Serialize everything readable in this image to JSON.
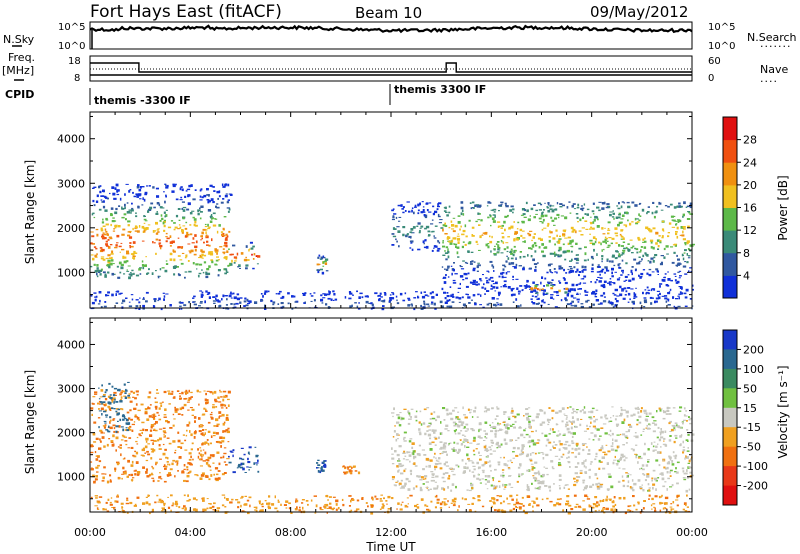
{
  "header": {
    "station": "Fort Hays East (fitACF)",
    "beam": "Beam 10",
    "date": "09/May/2012"
  },
  "summary": {
    "nsky_label": "N.Sky",
    "nsearch_label": "N.Search",
    "freq_label_line1": "Freq.",
    "freq_label_line2": "[MHz]",
    "nave_label": "Nave",
    "cpid_label": "CPID",
    "nsky_ticks": [
      "10^5",
      "10^0"
    ],
    "nsearch_ticks": [
      "10^5",
      "10^0"
    ],
    "freq_ticks": [
      "18",
      "8"
    ],
    "nave_ticks": [
      "60",
      "0"
    ],
    "cpid_segments": [
      "themis -3300 IF",
      "themis 3300 IF"
    ]
  },
  "axes": {
    "xlabel": "Time UT",
    "ylabel": "Slant Range [km]",
    "xticks": [
      "00:00",
      "04:00",
      "08:00",
      "12:00",
      "16:00",
      "20:00",
      "00:00"
    ],
    "yticks": [
      "1000",
      "2000",
      "3000",
      "4000"
    ]
  },
  "power_colorbar": {
    "label": "Power [dB]",
    "ticks": [
      "4",
      "8",
      "12",
      "16",
      "20",
      "24",
      "28"
    ],
    "colors": [
      "#1030d8",
      "#3058a0",
      "#3a8a78",
      "#5cb848",
      "#f0c020",
      "#f09010",
      "#f05010",
      "#e01010"
    ]
  },
  "velocity_colorbar": {
    "label": "Velocity [m s⁻¹]",
    "ticks": [
      "200",
      "100",
      "50",
      "15",
      "-15",
      "-50",
      "-100",
      "-200"
    ],
    "colors": [
      "#1838c8",
      "#2a6890",
      "#3a8a60",
      "#70c040",
      "#c8c8c0",
      "#f0a020",
      "#f07010",
      "#e83818",
      "#e01010"
    ]
  },
  "chart_data": [
    {
      "type": "heatmap",
      "title": "Power",
      "xlabel": "Time UT",
      "ylabel": "Slant Range [km]",
      "x_range_hours": [
        0,
        24
      ],
      "y_range_km": [
        200,
        4600
      ],
      "color_range_db": [
        0,
        32
      ],
      "regions": [
        {
          "t": [
            0.0,
            5.6
          ],
          "r": [
            900,
            3000
          ],
          "peak_range_km": 1700,
          "peak_db": 27
        },
        {
          "t": [
            5.5,
            6.7
          ],
          "r": [
            1100,
            1700
          ],
          "peak_range_km": 1400,
          "peak_db": 28
        },
        {
          "t": [
            9.0,
            9.4
          ],
          "r": [
            1000,
            1400
          ],
          "peak_range_km": 1200,
          "peak_db": 22
        },
        {
          "t": [
            12.0,
            14.0
          ],
          "r": [
            1500,
            2600
          ],
          "peak_range_km": 2000,
          "peak_db": 10
        },
        {
          "t": [
            14.0,
            24.0
          ],
          "r": [
            600,
            2600
          ],
          "peak_range_km": 1900,
          "peak_db": 20
        },
        {
          "t": [
            17.5,
            19.0
          ],
          "r": [
            500,
            800
          ],
          "peak_range_km": 650,
          "peak_db": 24
        },
        {
          "t": [
            0.0,
            24.0
          ],
          "r": [
            200,
            600
          ],
          "peak_range_km": 300,
          "peak_db": 6
        }
      ]
    },
    {
      "type": "heatmap",
      "title": "Velocity",
      "xlabel": "Time UT",
      "ylabel": "Slant Range [km]",
      "x_range_hours": [
        0,
        24
      ],
      "y_range_km": [
        200,
        4600
      ],
      "color_range_ms": [
        -200,
        200
      ],
      "regions": [
        {
          "t": [
            0.0,
            5.5
          ],
          "r": [
            900,
            3000
          ],
          "velocity_ms": -50
        },
        {
          "t": [
            0.3,
            1.5
          ],
          "r": [
            2000,
            3200
          ],
          "velocity_ms": 150
        },
        {
          "t": [
            5.5,
            6.7
          ],
          "r": [
            1100,
            1700
          ],
          "velocity_ms": 200
        },
        {
          "t": [
            9.0,
            9.4
          ],
          "r": [
            1100,
            1400
          ],
          "velocity_ms": 200
        },
        {
          "t": [
            10.0,
            10.7
          ],
          "r": [
            1100,
            1300
          ],
          "velocity_ms": -50
        },
        {
          "t": [
            12.0,
            24.0
          ],
          "r": [
            700,
            2600
          ],
          "velocity_ms": 0
        },
        {
          "t": [
            0.0,
            24.0
          ],
          "r": [
            200,
            600
          ],
          "velocity_ms": -40
        }
      ]
    }
  ]
}
